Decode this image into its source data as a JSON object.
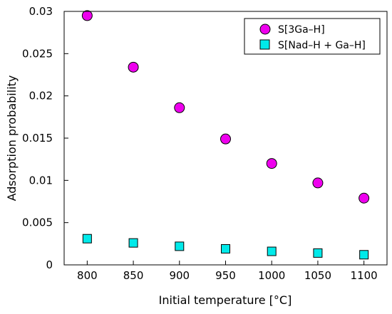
{
  "chart_data": {
    "type": "scatter",
    "title": "",
    "xlabel": "Initial temperature [°C]",
    "ylabel": "Adsorption probability",
    "xlim": [
      775,
      1125
    ],
    "ylim": [
      0,
      0.03
    ],
    "x_ticks": [
      "800",
      "850",
      "900",
      "950",
      "1000",
      "1050",
      "1100"
    ],
    "y_ticks": [
      "0",
      "0.005",
      "0.01",
      "0.015",
      "0.02",
      "0.025",
      "0.03"
    ],
    "grid": false,
    "legend_position": "top-right",
    "series": [
      {
        "name": "S[3Ga–H]",
        "marker": "circle",
        "color": "#ee00ee",
        "x": [
          800,
          850,
          900,
          950,
          1000,
          1050,
          1100
        ],
        "y": [
          0.0295,
          0.0234,
          0.0186,
          0.0149,
          0.012,
          0.0097,
          0.0079
        ]
      },
      {
        "name": "S[Nad–H + Ga–H]",
        "marker": "square",
        "color": "#00eaea",
        "x": [
          800,
          850,
          900,
          950,
          1000,
          1050,
          1100
        ],
        "y": [
          0.0031,
          0.0026,
          0.0022,
          0.0019,
          0.0016,
          0.0014,
          0.0012
        ]
      }
    ]
  }
}
